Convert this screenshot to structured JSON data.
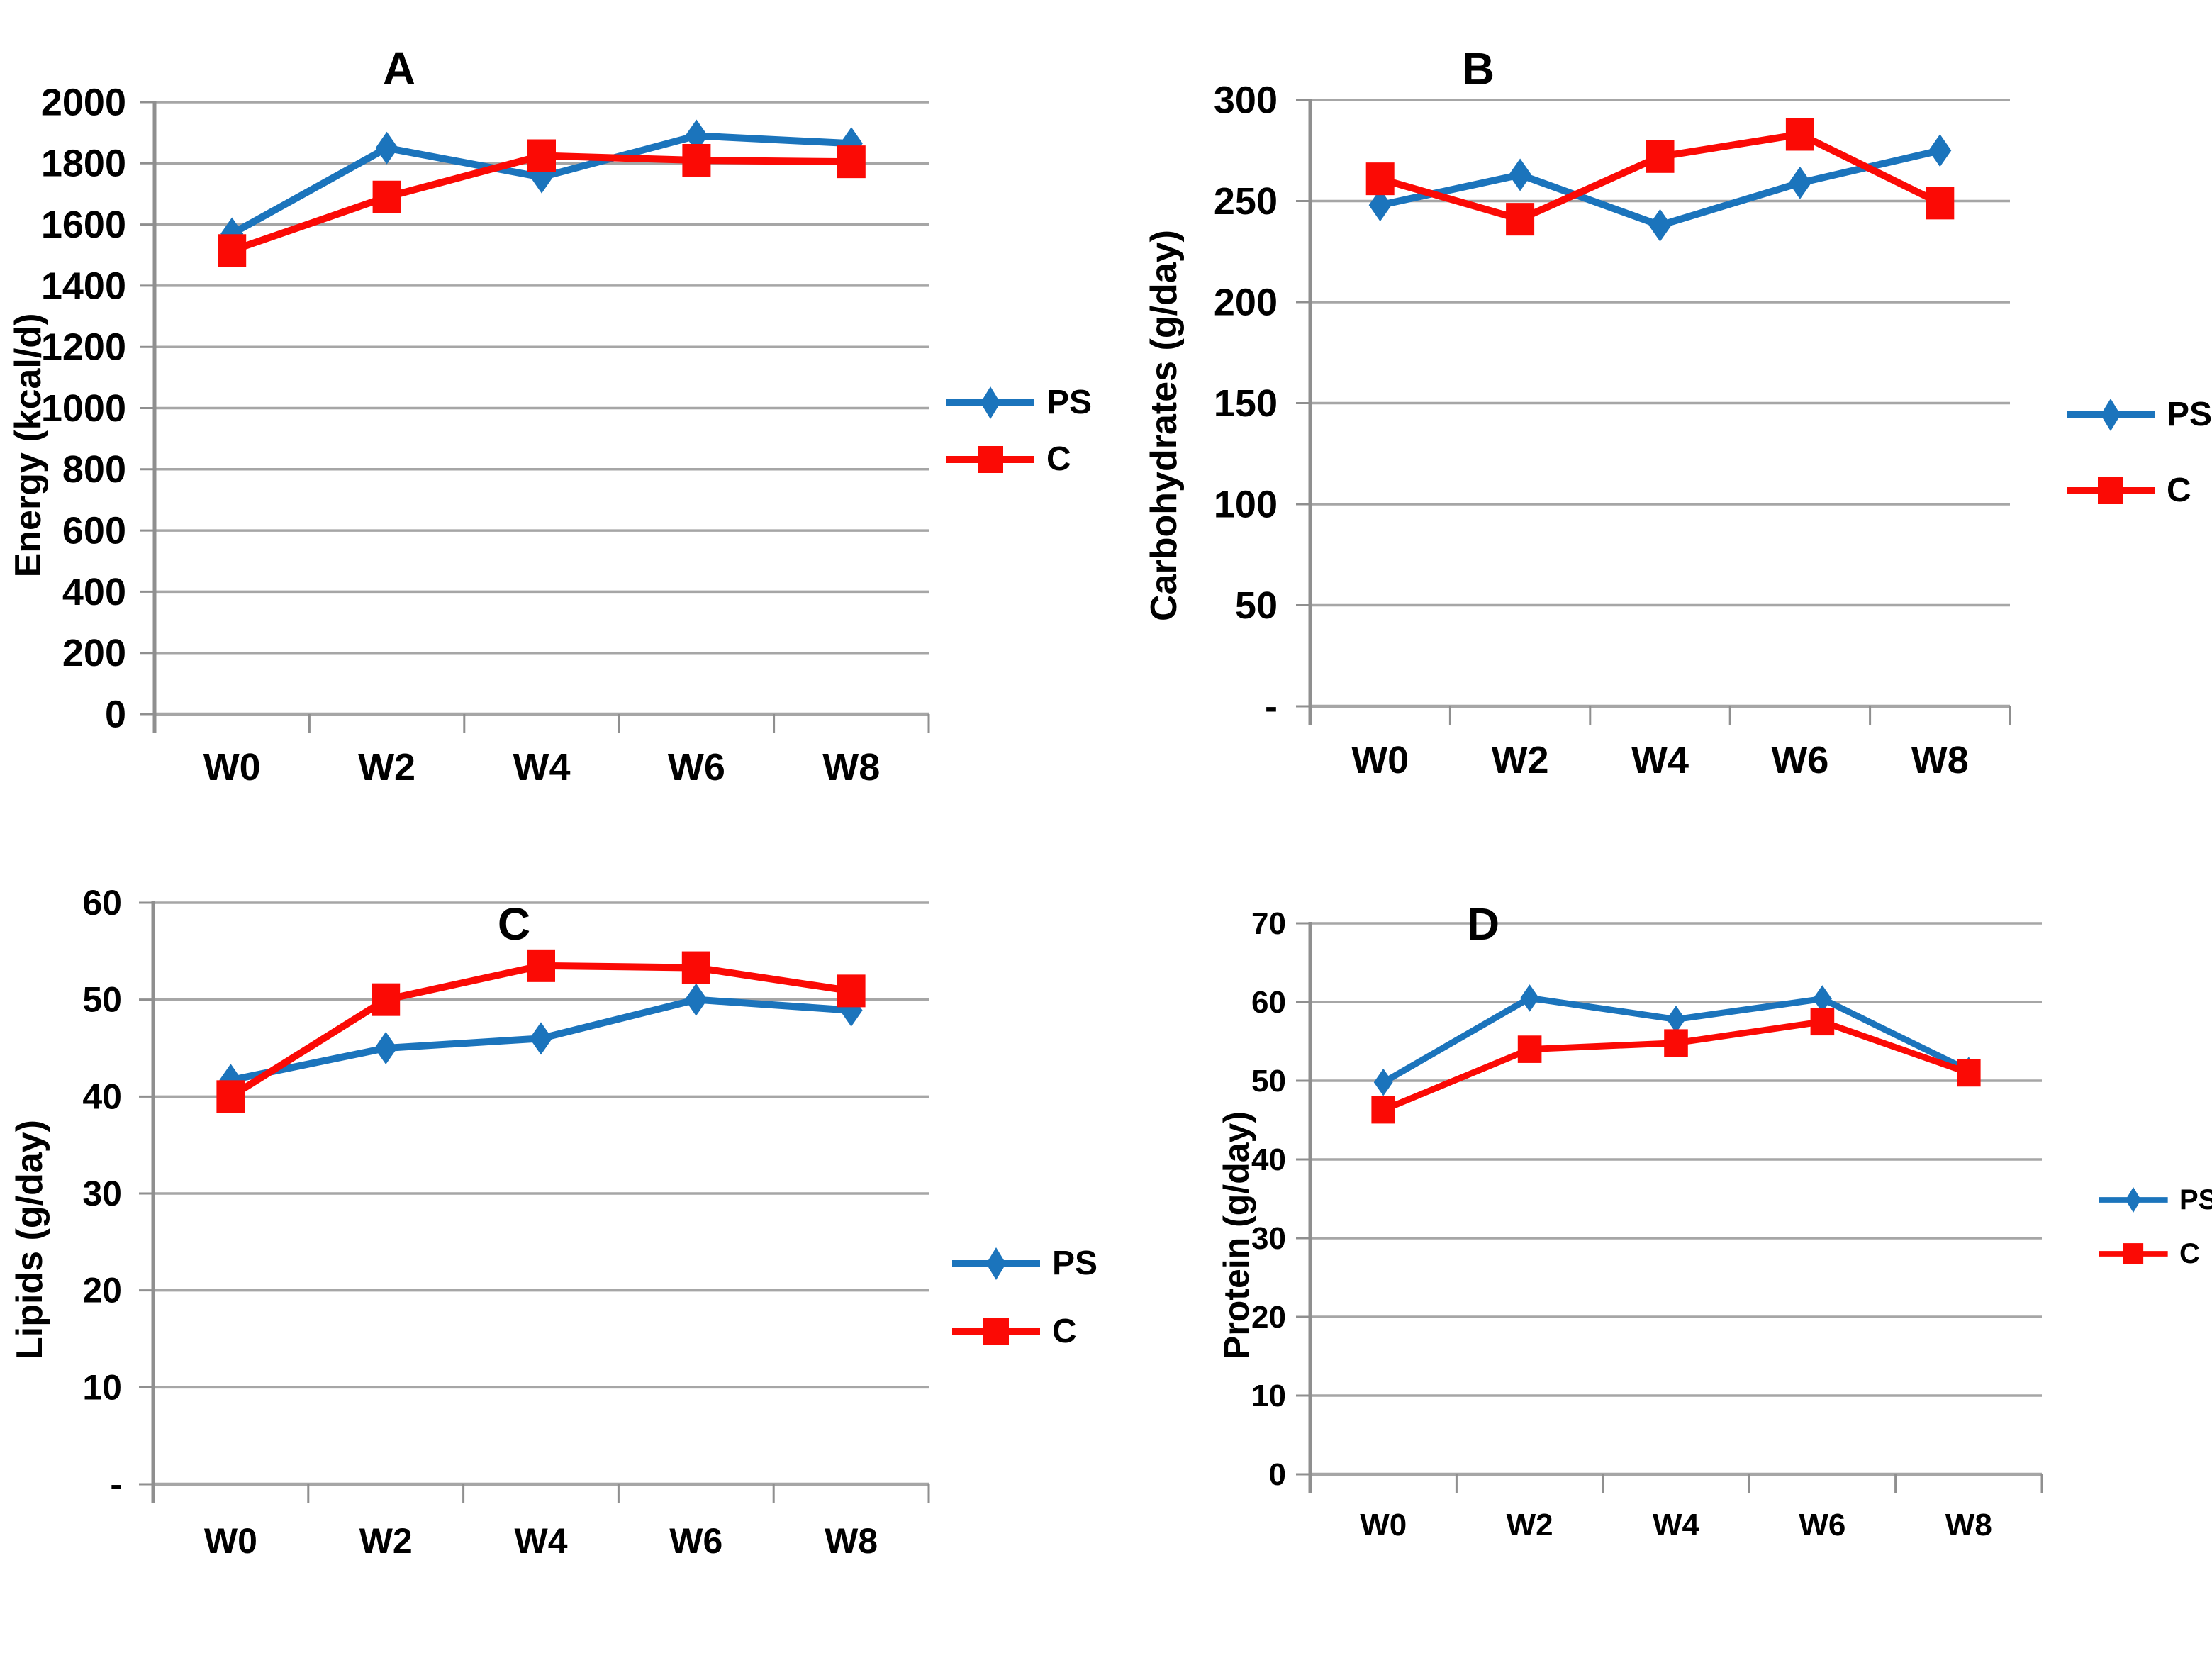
{
  "figure": {
    "background": "#ffffff"
  },
  "colors": {
    "ps_blue": "#1b74bc",
    "c_red": "#fb0a05",
    "gridline": "#a6a6a6",
    "axis": "#8f8f8f",
    "text": "#000000"
  },
  "categories": [
    "W0",
    "W2",
    "W4",
    "W6",
    "W8"
  ],
  "legend": {
    "ps": "PS",
    "c": "C"
  },
  "chart_data": [
    {
      "id": "A",
      "type": "line",
      "title": "A",
      "ylabel": "Energy (kcal/d)",
      "categories": [
        "W0",
        "W2",
        "W4",
        "W6",
        "W8"
      ],
      "series": [
        {
          "name": "PS",
          "color": "#1b74bc",
          "marker": "diamond",
          "values": [
            1570,
            1850,
            1755,
            1890,
            1865
          ]
        },
        {
          "name": "C",
          "color": "#fb0a05",
          "marker": "square",
          "values": [
            1515,
            1690,
            1825,
            1810,
            1805
          ]
        }
      ],
      "ylim": [
        0,
        2000
      ],
      "ystep": 200,
      "zero_tick_label": "0",
      "grid": true,
      "legend_position": "right"
    },
    {
      "id": "B",
      "type": "line",
      "title": "B",
      "ylabel": "Carbohydrates (g/day)",
      "categories": [
        "W0",
        "W2",
        "W4",
        "W6",
        "W8"
      ],
      "series": [
        {
          "name": "PS",
          "color": "#1b74bc",
          "marker": "diamond",
          "values": [
            248,
            263,
            238,
            259,
            275
          ]
        },
        {
          "name": "C",
          "color": "#fb0a05",
          "marker": "square",
          "values": [
            261,
            241,
            272,
            283,
            249
          ]
        }
      ],
      "ylim": [
        0,
        300
      ],
      "ystep": 50,
      "zero_tick_label": "-",
      "grid": true,
      "legend_position": "right"
    },
    {
      "id": "C",
      "type": "line",
      "title": "C",
      "ylabel": "Lipids (g/day)",
      "categories": [
        "W0",
        "W2",
        "W4",
        "W6",
        "W8"
      ],
      "series": [
        {
          "name": "PS",
          "color": "#1b74bc",
          "marker": "diamond",
          "values": [
            41.7,
            45,
            46,
            50,
            48.9
          ]
        },
        {
          "name": "C",
          "color": "#fb0a05",
          "marker": "square",
          "values": [
            40,
            50,
            53.5,
            53.3,
            50.9
          ]
        }
      ],
      "ylim": [
        0,
        60
      ],
      "ystep": 10,
      "zero_tick_label": "-",
      "grid": true,
      "legend_position": "right"
    },
    {
      "id": "D",
      "type": "line",
      "title": "D",
      "ylabel": "Protein (g/day)",
      "categories": [
        "W0",
        "W2",
        "W4",
        "W6",
        "W8"
      ],
      "series": [
        {
          "name": "PS",
          "color": "#1b74bc",
          "marker": "diamond",
          "values": [
            49.8,
            60.5,
            57.8,
            60.4,
            51.3
          ]
        },
        {
          "name": "C",
          "color": "#fb0a05",
          "marker": "square",
          "values": [
            46.3,
            54,
            54.8,
            57.5,
            51
          ]
        }
      ],
      "ylim": [
        0,
        70
      ],
      "ystep": 10,
      "zero_tick_label": "0",
      "grid": true,
      "legend_position": "right"
    }
  ]
}
